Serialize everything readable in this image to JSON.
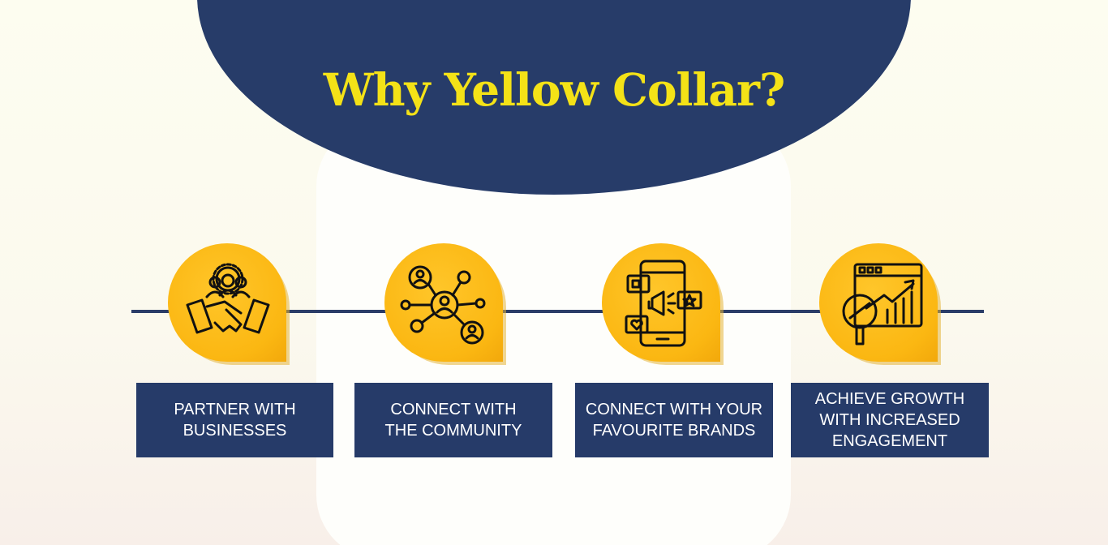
{
  "title": "Why Yellow Collar?",
  "colors": {
    "navy": "#273c69",
    "yellow": "#f4e217",
    "badge": "#fbb712"
  },
  "features": [
    {
      "icon": "handshake-team-icon",
      "line1": "PARTNER WITH",
      "line2": "BUSINESSES",
      "line3": ""
    },
    {
      "icon": "community-network-icon",
      "line1": "CONNECT WITH",
      "line2": "THE COMMUNITY",
      "line3": ""
    },
    {
      "icon": "mobile-marketing-icon",
      "line1": "CONNECT WITH YOUR",
      "line2": "FAVOURITE BRANDS",
      "line3": ""
    },
    {
      "icon": "growth-analytics-icon",
      "line1": "ACHIEVE GROWTH",
      "line2": "WITH INCREASED",
      "line3": "ENGAGEMENT"
    }
  ]
}
